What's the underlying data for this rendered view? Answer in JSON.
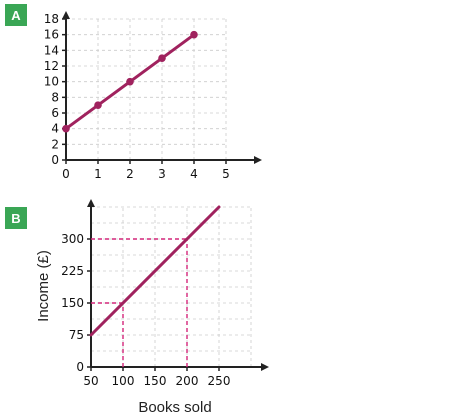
{
  "badge_color": "#3aa655",
  "series_color": "#a0225e",
  "guide_color": "#d4267a",
  "grid_color": "#cccccc",
  "chart_data": [
    {
      "panel_label": "A",
      "type": "line",
      "title": "",
      "xlabel": "",
      "ylabel": "",
      "xlim": [
        0,
        5
      ],
      "ylim": [
        0,
        18
      ],
      "xticks": [
        0,
        1,
        2,
        3,
        4,
        5
      ],
      "yticks": [
        0,
        2,
        4,
        6,
        8,
        10,
        12,
        14,
        16,
        18
      ],
      "grid": true,
      "markers": true,
      "series": [
        {
          "x": [
            0,
            1,
            2,
            3,
            4
          ],
          "y": [
            4,
            7,
            10,
            13,
            16
          ]
        }
      ]
    },
    {
      "panel_label": "B",
      "type": "line",
      "title": "",
      "xlabel": "Books sold",
      "ylabel": "Income (£)",
      "xlim": [
        50,
        300
      ],
      "ylim": [
        0,
        375
      ],
      "xticks": [
        50,
        100,
        150,
        200,
        250
      ],
      "yticks": [
        0,
        75,
        150,
        225,
        300
      ],
      "grid": true,
      "markers": false,
      "series": [
        {
          "x": [
            50,
            250
          ],
          "y": [
            75,
            375
          ]
        }
      ],
      "guides": [
        {
          "x": 100,
          "y": 150
        },
        {
          "x": 200,
          "y": 300
        }
      ]
    }
  ]
}
